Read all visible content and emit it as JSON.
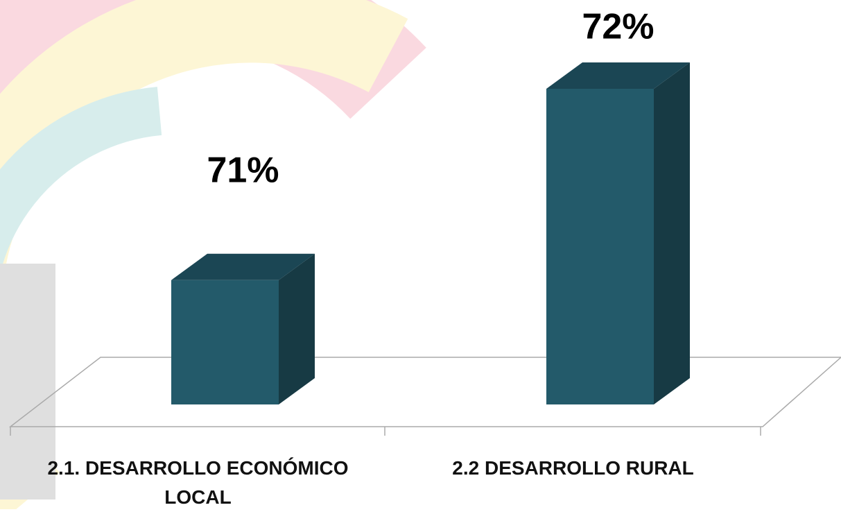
{
  "chart_data": {
    "type": "bar3d",
    "categories": [
      "2.1. DESARROLLO ECONÓMICO LOCAL",
      "2.2 DESARROLLO RURAL"
    ],
    "values": [
      71,
      72
    ],
    "value_labels": [
      "71%",
      "72%"
    ],
    "color": "#235a6a",
    "ylim": [
      70.35,
      72
    ]
  }
}
